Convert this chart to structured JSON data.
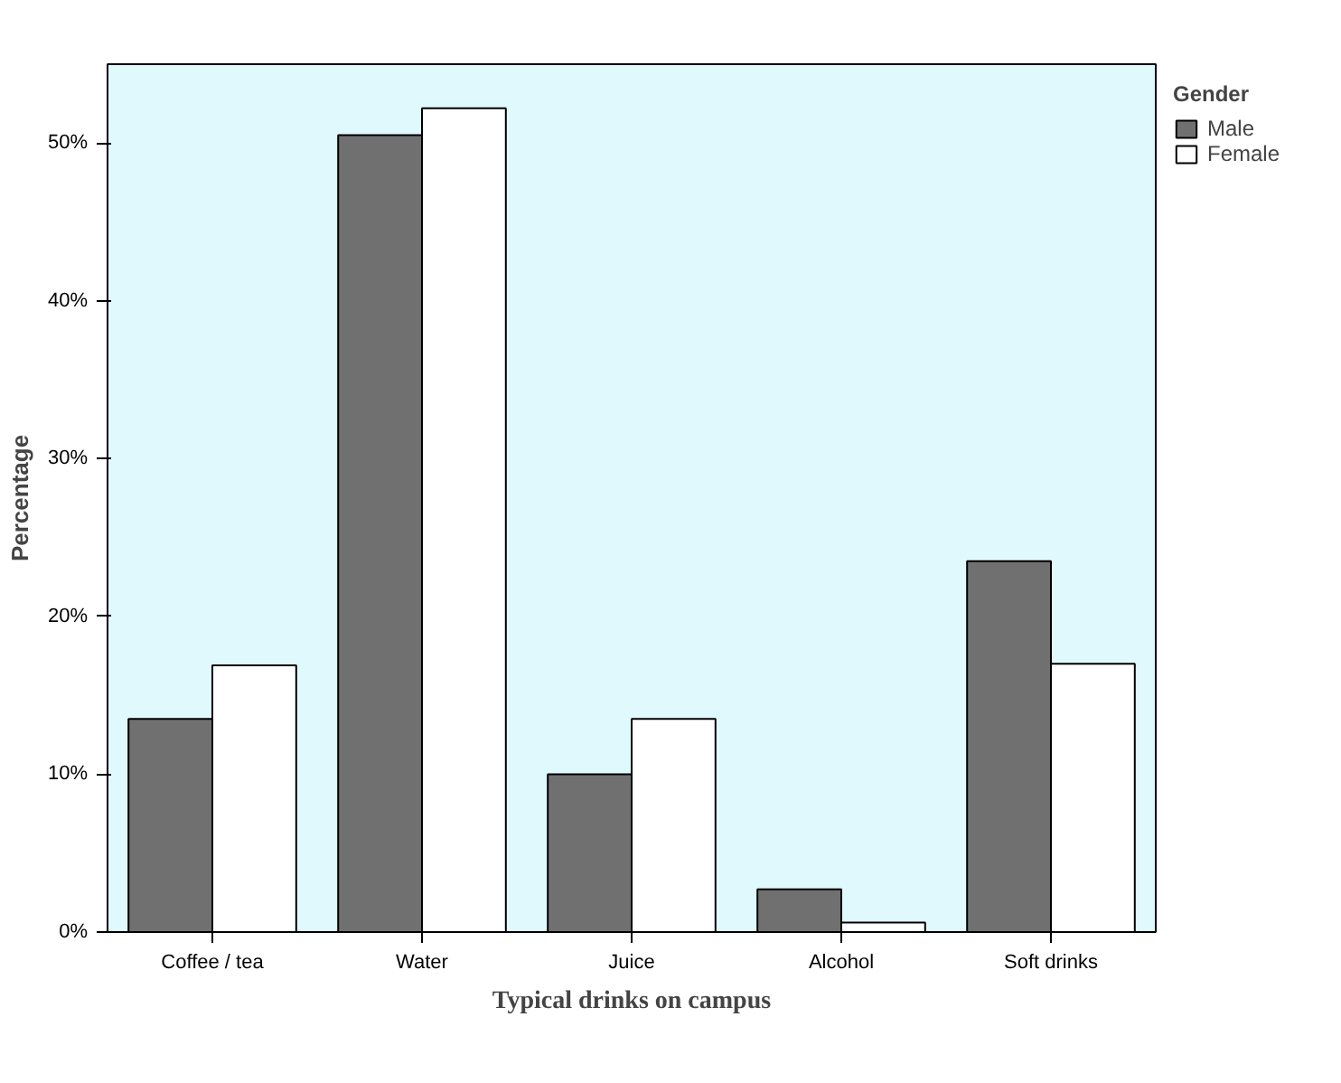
{
  "chart_data": {
    "type": "bar",
    "xlabel": "Typical drinks on campus",
    "ylabel": "Percentage",
    "legend_title": "Gender",
    "categories": [
      "Coffee / tea",
      "Water",
      "Juice",
      "Alcohol",
      "Soft drinks"
    ],
    "series": [
      {
        "name": "Male",
        "color": "#707070",
        "values": [
          13.5,
          50.5,
          10.0,
          2.7,
          23.5
        ]
      },
      {
        "name": "Female",
        "color": "#ffffff",
        "values": [
          16.9,
          52.2,
          13.5,
          0.6,
          17.0
        ]
      }
    ],
    "ylim": [
      0,
      55
    ],
    "yticks": [
      {
        "value": 0,
        "label": "0%"
      },
      {
        "value": 10,
        "label": "10%"
      },
      {
        "value": 20,
        "label": "20%"
      },
      {
        "value": 30,
        "label": "30%"
      },
      {
        "value": 40,
        "label": "40%"
      },
      {
        "value": 50,
        "label": "50%"
      }
    ],
    "grid": false,
    "legend": "top right"
  }
}
